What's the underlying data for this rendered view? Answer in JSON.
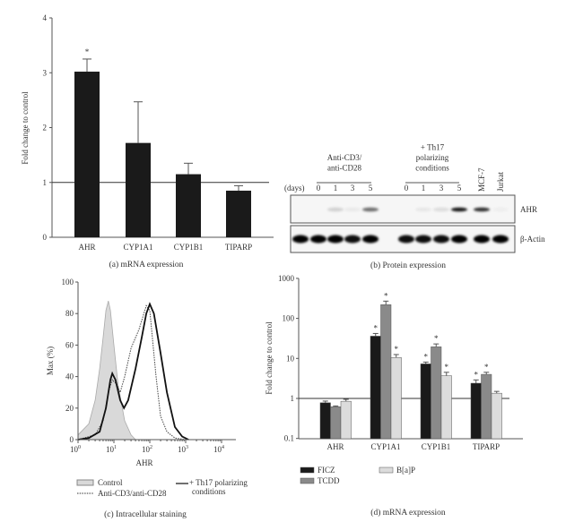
{
  "chart_data": [
    {
      "id": "a",
      "type": "bar",
      "caption": "(a) mRNA expression",
      "ylabel": "Fold change to control",
      "ylim": [
        0,
        4
      ],
      "yticks": [
        "0",
        "1",
        "2",
        "3",
        "4"
      ],
      "reference_line": 1,
      "categories": [
        "AHR",
        "CYP1A1",
        "CYP1B1",
        "TIPARP"
      ],
      "values": [
        3.02,
        1.72,
        1.15,
        0.85
      ],
      "errors": [
        0.23,
        0.75,
        0.2,
        0.09
      ],
      "significance": [
        "*",
        "",
        "",
        ""
      ],
      "bar_color": "#1a1a1a"
    },
    {
      "id": "b",
      "type": "western-blot",
      "caption": "(b) Protein expression",
      "days_label": "(days)",
      "groups": [
        {
          "label_lines": [
            "Anti-CD3/",
            "anti-CD28"
          ],
          "days": [
            "0",
            "1",
            "3",
            "5"
          ]
        },
        {
          "label_lines": [
            "+ Th17",
            "polarizing",
            "conditions"
          ],
          "days": [
            "0",
            "1",
            "3",
            "5"
          ]
        }
      ],
      "controls": [
        "MCF-7",
        "Jurkat"
      ],
      "rows": [
        {
          "label": "AHR",
          "band_intensity": [
            0,
            0.15,
            0.05,
            0.55,
            0,
            0.06,
            0.1,
            0.9,
            0.8,
            0.03
          ]
        },
        {
          "label": "β-Actin",
          "band_intensity": [
            1,
            1,
            0.95,
            1,
            0.95,
            0.95,
            0.95,
            1,
            1,
            1
          ]
        }
      ],
      "extra_left_lane": {
        "AHR": 0,
        "β-Actin": 1
      }
    },
    {
      "id": "c",
      "type": "line",
      "caption": "(c) Intracellular staining",
      "xlabel": "AHR",
      "ylabel": "Max (%)",
      "xscale": "log",
      "xlim": [
        1,
        20000
      ],
      "ylim": [
        0,
        100
      ],
      "xticks": [
        {
          "base": "10",
          "exp": "0"
        },
        {
          "base": "10",
          "exp": "1"
        },
        {
          "base": "10",
          "exp": "2"
        },
        {
          "base": "10",
          "exp": "3"
        },
        {
          "base": "10",
          "exp": "4"
        }
      ],
      "yticks": [
        "0",
        "20",
        "40",
        "60",
        "80",
        "100"
      ],
      "series": [
        {
          "name": "Control",
          "style": "filled",
          "color": "#d9d9d9",
          "points": [
            [
              1,
              3
            ],
            [
              2,
              10
            ],
            [
              3,
              25
            ],
            [
              4,
              45
            ],
            [
              5,
              65
            ],
            [
              6,
              82
            ],
            [
              7,
              88
            ],
            [
              8,
              82
            ],
            [
              10,
              60
            ],
            [
              13,
              35
            ],
            [
              20,
              12
            ],
            [
              30,
              3
            ],
            [
              40,
              0
            ]
          ]
        },
        {
          "name": "Anti-CD3/anti-CD28",
          "style": "dotted",
          "color": "#444444",
          "points": [
            [
              1,
              0
            ],
            [
              3,
              3
            ],
            [
              5,
              12
            ],
            [
              7,
              30
            ],
            [
              9,
              38
            ],
            [
              12,
              35
            ],
            [
              15,
              30
            ],
            [
              20,
              40
            ],
            [
              30,
              58
            ],
            [
              50,
              70
            ],
            [
              80,
              85
            ],
            [
              100,
              82
            ],
            [
              150,
              40
            ],
            [
              200,
              15
            ],
            [
              300,
              5
            ],
            [
              500,
              1
            ],
            [
              1000,
              0
            ]
          ]
        },
        {
          "name": "+ Th17 polarizing conditions",
          "legend_lines": [
            "+ Th17 polarizing",
            "conditions"
          ],
          "style": "solid",
          "color": "#111111",
          "points": [
            [
              1,
              0
            ],
            [
              2,
              1
            ],
            [
              4,
              5
            ],
            [
              6,
              20
            ],
            [
              8,
              38
            ],
            [
              9,
              42
            ],
            [
              11,
              38
            ],
            [
              15,
              25
            ],
            [
              19,
              20
            ],
            [
              25,
              25
            ],
            [
              40,
              45
            ],
            [
              60,
              65
            ],
            [
              80,
              80
            ],
            [
              100,
              86
            ],
            [
              130,
              80
            ],
            [
              200,
              55
            ],
            [
              300,
              30
            ],
            [
              500,
              8
            ],
            [
              800,
              2
            ],
            [
              1200,
              0
            ]
          ]
        }
      ],
      "legend_placement": "bottom"
    },
    {
      "id": "d",
      "type": "bar",
      "caption": "(d) mRNA expression",
      "ylabel": "Fold change to control",
      "yscale": "log",
      "ylim": [
        0.1,
        1000
      ],
      "yticks": [
        "0.1",
        "1",
        "10",
        "100",
        "1000"
      ],
      "reference_line": 1,
      "categories": [
        "AHR",
        "CYP1A1",
        "CYP1B1",
        "TIPARP"
      ],
      "series": [
        {
          "name": "FICZ",
          "color": "#1a1a1a",
          "values": [
            0.78,
            36,
            7.3,
            2.4
          ],
          "errors": [
            0.08,
            6,
            0.8,
            0.5
          ],
          "significance": [
            "",
            "*",
            "*",
            "*"
          ]
        },
        {
          "name": "TCDD",
          "color": "#8a8a8a",
          "values": [
            0.62,
            220,
            19.5,
            4.0
          ],
          "errors": [
            0.03,
            50,
            3.5,
            0.5
          ],
          "significance": [
            "",
            "*",
            "*",
            "*"
          ]
        },
        {
          "name": "B[a]P",
          "color": "#dcdcdc",
          "values": [
            0.85,
            10.5,
            3.7,
            1.35
          ],
          "errors": [
            0.1,
            2,
            0.8,
            0.15
          ],
          "significance": [
            "",
            "*",
            "*",
            ""
          ]
        }
      ],
      "legend_placement": "bottom-left"
    }
  ]
}
